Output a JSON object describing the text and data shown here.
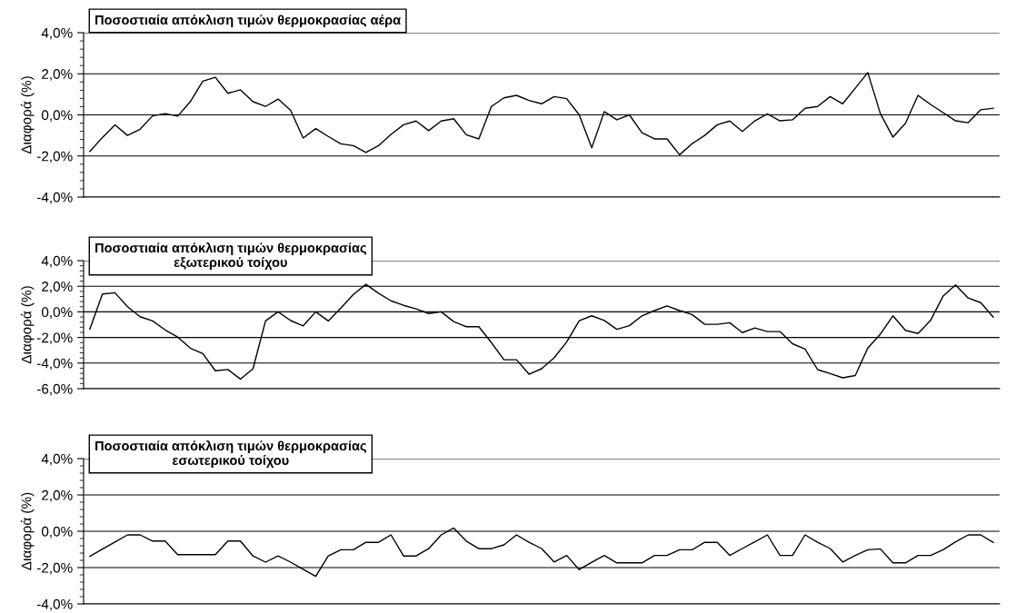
{
  "chart_data": [
    {
      "type": "line",
      "title": "Ποσοστιαία απόκλιση τιμών θερμοκρασίας αέρα",
      "ylabel": "Διαφορά (%)",
      "categories": [
        null,
        null,
        null,
        null,
        null,
        null,
        null,
        null,
        null,
        null,
        null,
        null,
        null,
        null,
        null,
        null,
        null,
        null,
        null,
        null,
        null,
        null,
        null,
        null,
        null,
        null,
        null,
        null,
        null,
        null,
        null,
        null,
        null,
        null,
        null,
        null,
        null,
        null,
        null,
        null,
        null,
        null,
        null,
        null,
        null,
        null,
        null,
        null,
        null,
        null,
        null,
        null,
        null,
        null,
        null,
        null,
        null,
        null,
        null,
        null,
        null,
        null,
        null,
        null,
        null,
        null,
        null,
        null,
        null,
        null,
        null,
        null,
        null
      ],
      "series": [
        {
          "color": "#000000",
          "values": [
            -1.78,
            -1.1,
            -0.49,
            -1.0,
            -0.7,
            -0.05,
            0.06,
            -0.06,
            0.64,
            1.64,
            1.83,
            1.05,
            1.22,
            0.64,
            0.41,
            0.77,
            0.22,
            -1.13,
            -0.67,
            -1.05,
            -1.41,
            -1.5,
            -1.83,
            -1.5,
            -0.95,
            -0.48,
            -0.3,
            -0.77,
            -0.3,
            -0.19,
            -0.97,
            -1.17,
            0.41,
            0.83,
            0.95,
            0.7,
            0.54,
            0.89,
            0.79,
            0.0,
            -1.6,
            0.16,
            -0.24,
            0.0,
            -0.87,
            -1.17,
            -1.17,
            -1.94,
            -1.4,
            -1.0,
            -0.48,
            -0.3,
            -0.81,
            -0.29,
            0.05,
            -0.29,
            -0.24,
            0.32,
            0.41,
            0.89,
            0.54,
            1.3,
            2.06,
            0.06,
            -1.08,
            -0.41,
            0.95,
            0.51,
            0.11,
            -0.29,
            -0.38,
            0.25,
            0.32
          ]
        }
      ],
      "ylim": [
        -4,
        4
      ],
      "yticks": [
        {
          "value": -4,
          "label": "-4,0%"
        },
        {
          "value": -2,
          "label": "-2,0%"
        },
        {
          "value": 0,
          "label": "0,0%"
        },
        {
          "value": 2,
          "label": "2,0%"
        },
        {
          "value": 4,
          "label": "4,0%"
        }
      ],
      "grid": "y",
      "legend": false,
      "marker": "none",
      "line_style": "solid"
    },
    {
      "type": "line",
      "title": "Ποσοστιαία απόκλιση τιμών θερμοκρασίας\nεξωτερικού τοίχου",
      "ylabel": "Διαφορά (%)",
      "categories": [
        null,
        null,
        null,
        null,
        null,
        null,
        null,
        null,
        null,
        null,
        null,
        null,
        null,
        null,
        null,
        null,
        null,
        null,
        null,
        null,
        null,
        null,
        null,
        null,
        null,
        null,
        null,
        null,
        null,
        null,
        null,
        null,
        null,
        null,
        null,
        null,
        null,
        null,
        null,
        null,
        null,
        null,
        null,
        null,
        null,
        null,
        null,
        null,
        null,
        null,
        null,
        null,
        null,
        null,
        null,
        null,
        null,
        null,
        null,
        null,
        null,
        null,
        null,
        null,
        null,
        null,
        null,
        null,
        null,
        null,
        null,
        null,
        null
      ],
      "series": [
        {
          "color": "#000000",
          "values": [
            -1.34,
            1.39,
            1.49,
            0.4,
            -0.38,
            -0.71,
            -1.41,
            -1.97,
            -2.83,
            -3.26,
            -4.6,
            -4.5,
            -5.25,
            -4.44,
            -0.71,
            0.0,
            -0.68,
            -1.09,
            0.0,
            -0.71,
            0.3,
            1.36,
            2.15,
            1.46,
            0.86,
            0.51,
            0.23,
            -0.13,
            0.0,
            -0.76,
            -1.16,
            -1.16,
            -2.4,
            -3.74,
            -3.74,
            -4.87,
            -4.44,
            -3.59,
            -2.36,
            -0.69,
            -0.31,
            -0.67,
            -1.36,
            -1.08,
            -0.31,
            0.1,
            0.46,
            0.1,
            -0.21,
            -0.97,
            -0.97,
            -0.85,
            -1.62,
            -1.26,
            -1.54,
            -1.54,
            -2.49,
            -2.9,
            -4.51,
            -4.82,
            -5.15,
            -4.97,
            -2.82,
            -1.74,
            -0.31,
            -1.44,
            -1.69,
            -0.67,
            1.23,
            2.1,
            1.08,
            0.72,
            -0.41
          ]
        }
      ],
      "ylim": [
        -6,
        4
      ],
      "yticks": [
        {
          "value": -6,
          "label": "-6,0%"
        },
        {
          "value": -4,
          "label": "-4,0%"
        },
        {
          "value": -2,
          "label": "-2,0%"
        },
        {
          "value": 0,
          "label": "0,0%"
        },
        {
          "value": 2,
          "label": "2,0%"
        },
        {
          "value": 4,
          "label": "4,0%"
        }
      ],
      "grid": "y",
      "legend": false,
      "marker": "none",
      "line_style": "solid"
    },
    {
      "type": "line",
      "title": "Ποσοστιαία απόκλιση τιμών θερμοκρασίας\nεσωτερικού τοίχου",
      "ylabel": "Διαφορά (%)",
      "categories": [
        null,
        null,
        null,
        null,
        null,
        null,
        null,
        null,
        null,
        null,
        null,
        null,
        null,
        null,
        null,
        null,
        null,
        null,
        null,
        null,
        null,
        null,
        null,
        null,
        null,
        null,
        null,
        null,
        null,
        null,
        null,
        null,
        null,
        null,
        null,
        null,
        null,
        null,
        null,
        null,
        null,
        null,
        null,
        null,
        null,
        null,
        null,
        null,
        null,
        null,
        null,
        null,
        null,
        null,
        null,
        null,
        null,
        null,
        null,
        null,
        null,
        null,
        null,
        null,
        null,
        null,
        null,
        null,
        null,
        null,
        null,
        null,
        null
      ],
      "series": [
        {
          "color": "#000000",
          "values": [
            -1.38,
            -0.98,
            -0.59,
            -0.2,
            -0.2,
            -0.54,
            -0.54,
            -1.29,
            -1.29,
            -1.29,
            -1.29,
            -0.54,
            -0.54,
            -1.36,
            -1.7,
            -1.36,
            -1.7,
            -2.09,
            -2.48,
            -1.36,
            -1.02,
            -1.02,
            -0.61,
            -0.61,
            -0.2,
            -1.36,
            -1.36,
            -0.96,
            -0.2,
            0.18,
            -0.54,
            -0.96,
            -0.96,
            -0.75,
            -0.2,
            -0.61,
            -0.95,
            -1.69,
            -1.33,
            -2.11,
            -1.71,
            -1.33,
            -1.74,
            -1.74,
            -1.74,
            -1.33,
            -1.33,
            -1.02,
            -1.02,
            -0.61,
            -0.61,
            -1.33,
            -0.95,
            -0.58,
            -0.2,
            -1.33,
            -1.33,
            -0.2,
            -0.61,
            -0.95,
            -1.69,
            -1.33,
            -1.02,
            -0.97,
            -1.74,
            -1.74,
            -1.33,
            -1.33,
            -1.02,
            -0.58,
            -0.2,
            -0.2,
            -0.61
          ]
        }
      ],
      "ylim": [
        -4,
        4
      ],
      "yticks": [
        {
          "value": -4,
          "label": "-4,0%"
        },
        {
          "value": -2,
          "label": "-2,0%"
        },
        {
          "value": 0,
          "label": "0,0%"
        },
        {
          "value": 2,
          "label": "2,0%"
        },
        {
          "value": 4,
          "label": "4,0%"
        }
      ],
      "grid": "y",
      "legend": false,
      "marker": "none",
      "line_style": "solid"
    }
  ]
}
